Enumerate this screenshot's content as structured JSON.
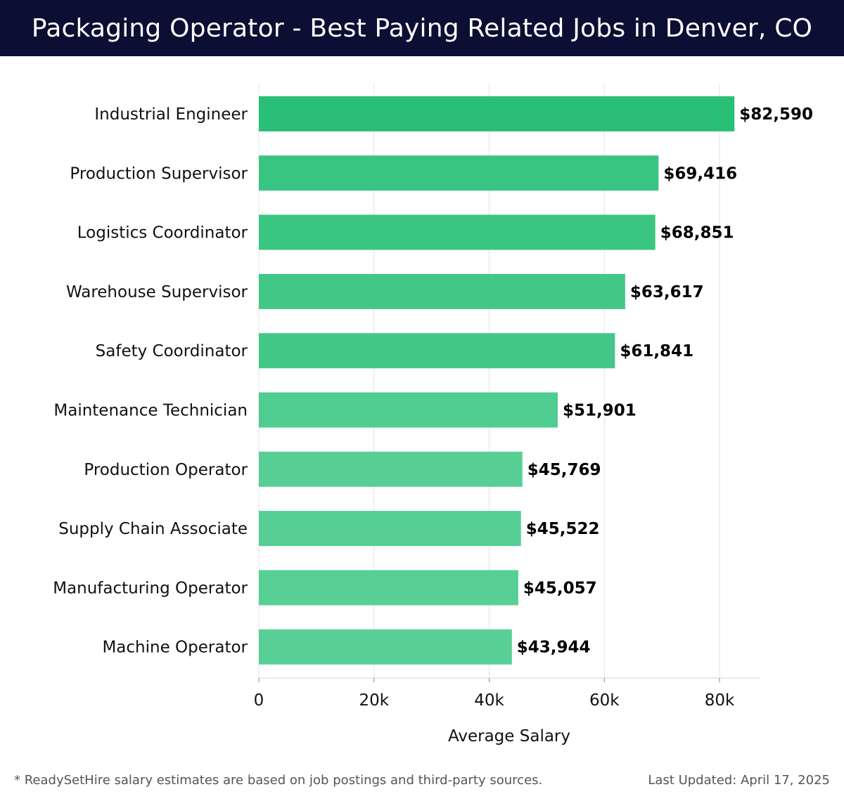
{
  "header": {
    "title": "Packaging Operator - Best Paying Related Jobs in Denver, CO"
  },
  "footer": {
    "note": "* ReadySetHire salary estimates are based on job postings and third-party sources.",
    "updated": "Last Updated: April 17, 2025"
  },
  "chart_data": {
    "type": "bar",
    "orientation": "horizontal",
    "title": "Packaging Operator - Best Paying Related Jobs in Denver, CO",
    "xlabel": "Average Salary",
    "ylabel": "",
    "categories": [
      "Industrial Engineer",
      "Production Supervisor",
      "Logistics Coordinator",
      "Warehouse Supervisor",
      "Safety Coordinator",
      "Maintenance Technician",
      "Production Operator",
      "Supply Chain Associate",
      "Manufacturing Operator",
      "Machine Operator"
    ],
    "values": [
      82590,
      69416,
      68851,
      63617,
      61841,
      51901,
      45769,
      45522,
      45057,
      43944
    ],
    "value_labels": [
      "$82,590",
      "$69,416",
      "$68,851",
      "$63,617",
      "$61,841",
      "$51,901",
      "$45,769",
      "$45,522",
      "$45,057",
      "$43,944"
    ],
    "xlim": [
      0,
      87000
    ],
    "ticks": [
      0,
      20000,
      40000,
      60000,
      80000
    ],
    "tick_labels": [
      "0",
      "20k",
      "40k",
      "60k",
      "80k"
    ],
    "grid": true,
    "bar_color_dark": "#2abf76",
    "bar_color_light": "#58cf96"
  }
}
